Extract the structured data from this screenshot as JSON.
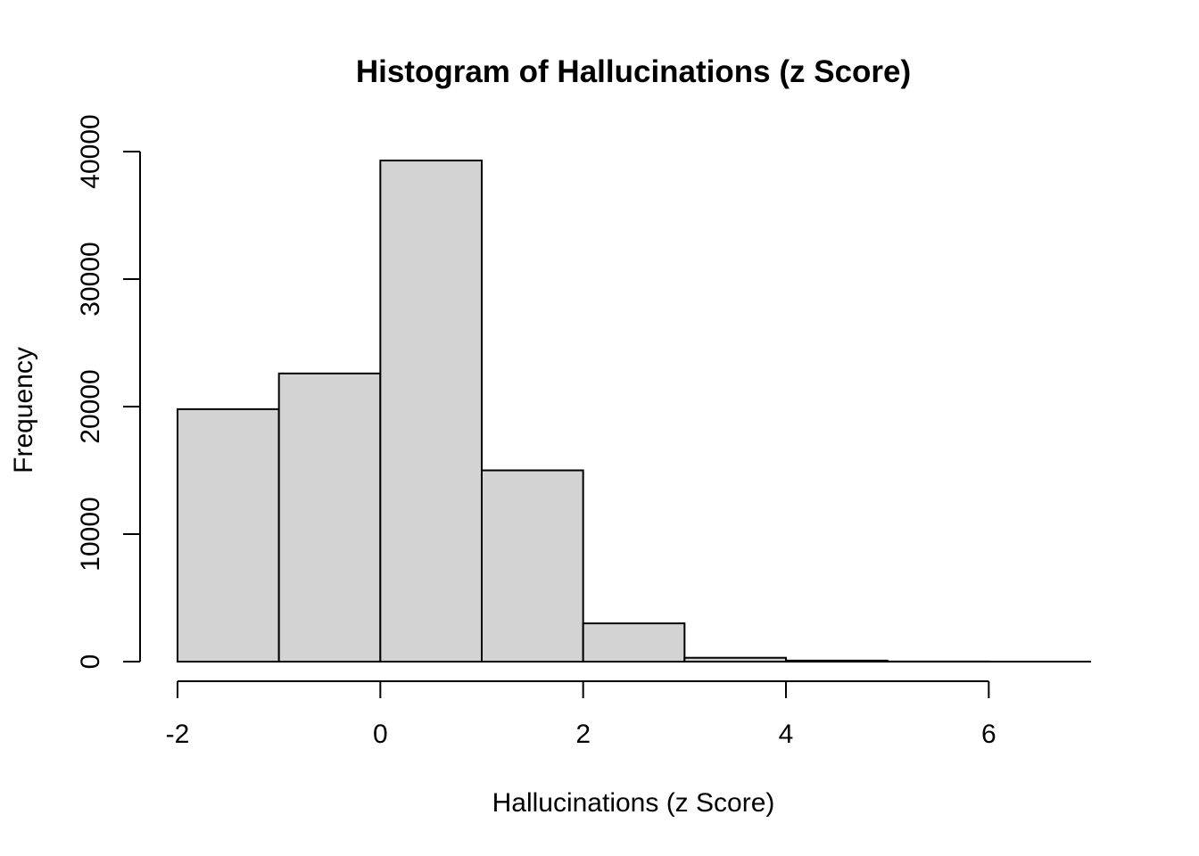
{
  "chart_data": {
    "type": "bar",
    "subtype": "histogram",
    "title": "Histogram of Hallucinations (z Score)",
    "xlabel": "Hallucinations (z Score)",
    "ylabel": "Frequency",
    "bins": [
      {
        "start": -2,
        "end": -1,
        "count": 19800
      },
      {
        "start": -1,
        "end": 0,
        "count": 22600
      },
      {
        "start": 0,
        "end": 1,
        "count": 39300
      },
      {
        "start": 1,
        "end": 2,
        "count": 15000
      },
      {
        "start": 2,
        "end": 3,
        "count": 3000
      },
      {
        "start": 3,
        "end": 4,
        "count": 300
      },
      {
        "start": 4,
        "end": 5,
        "count": 80
      },
      {
        "start": 5,
        "end": 6,
        "count": 10
      },
      {
        "start": 6,
        "end": 7,
        "count": 2
      }
    ],
    "xlim": [
      -2,
      7
    ],
    "ylim": [
      0,
      40000
    ],
    "x_ticks": [
      -2,
      0,
      2,
      4,
      6
    ],
    "x_tick_labels": [
      "-2",
      "0",
      "2",
      "4",
      "6"
    ],
    "y_ticks": [
      0,
      10000,
      20000,
      30000,
      40000
    ],
    "y_tick_labels": [
      "0",
      "10000",
      "20000",
      "30000",
      "40000"
    ],
    "grid": false,
    "legend": "none",
    "colors": {
      "bar_fill": "#d3d3d3",
      "bar_stroke": "#000000"
    }
  }
}
